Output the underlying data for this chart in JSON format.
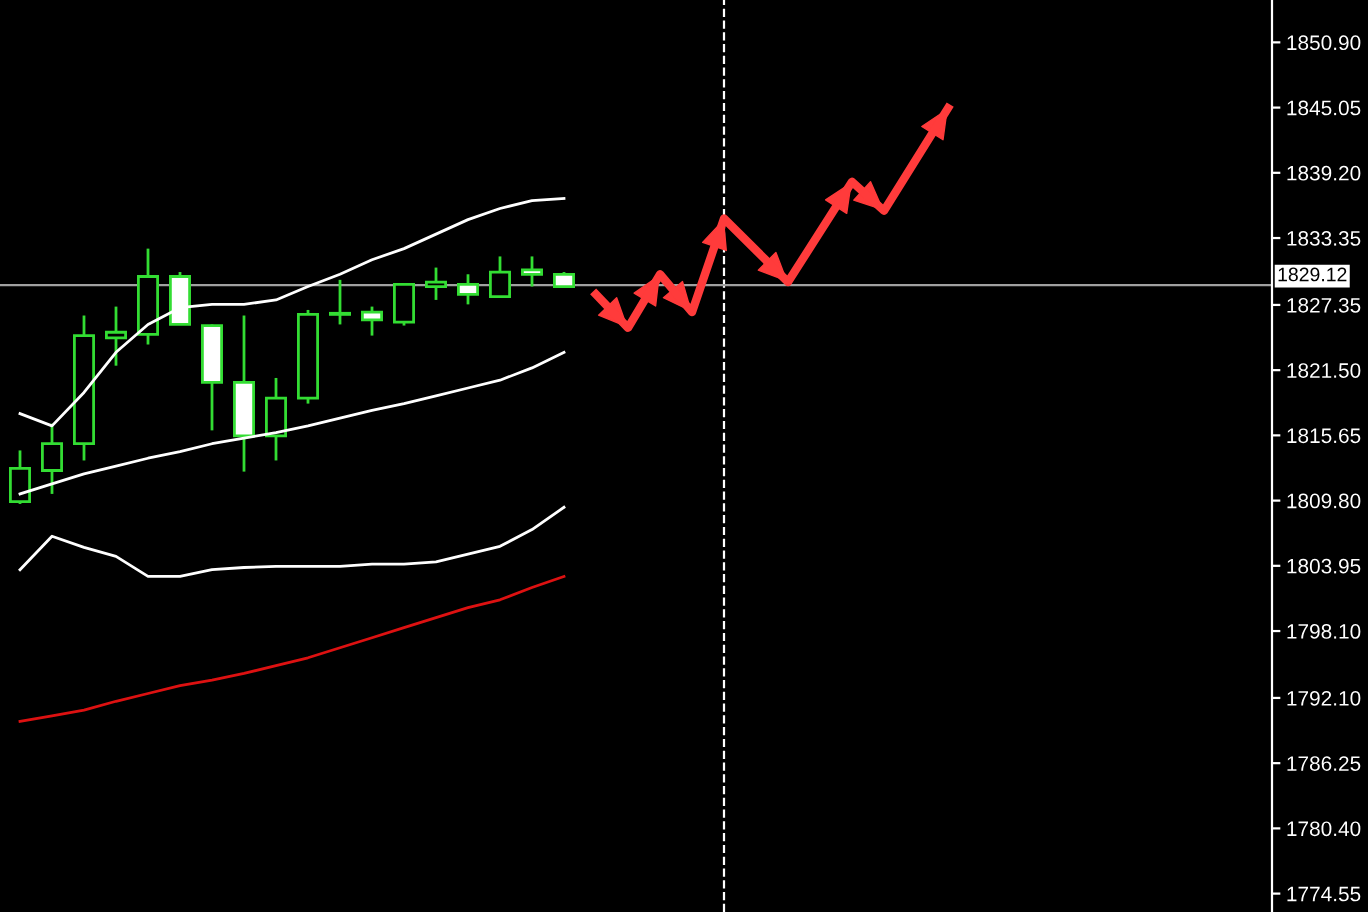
{
  "chart_data": {
    "type": "candlestick",
    "categories": [
      null,
      null,
      null,
      null,
      null,
      null,
      null,
      null,
      null,
      null,
      null,
      null,
      null,
      null,
      null,
      null,
      null,
      null,
      null,
      null,
      null,
      null,
      null,
      null,
      null,
      null,
      null,
      null,
      null,
      null,
      null,
      null,
      null,
      null,
      null,
      null,
      null,
      null,
      null,
      null
    ],
    "ylim": [
      1772.9,
      1854.7
    ],
    "yticks": [
      1774.55,
      {
        "value": 1780.4,
        "label": "1780.40"
      },
      1786.25,
      {
        "value": 1792.1,
        "label": "1792.10"
      },
      {
        "value": 1798.1,
        "label": "1798.10"
      },
      1803.95,
      {
        "value": 1809.8,
        "label": "1809.80"
      },
      1815.65,
      {
        "value": 1821.5,
        "label": "1821.50"
      },
      1827.35,
      1833.35,
      {
        "value": 1839.2,
        "label": "1839.20"
      },
      1845.05,
      {
        "value": 1850.9,
        "label": "1850.90"
      }
    ],
    "grid": false,
    "color": "#33dd33",
    "colors": [
      "#000000",
      "#000000",
      "#000000",
      "#000000",
      "#000000",
      "#ffffff",
      "#ffffff",
      "#ffffff",
      "#000000",
      "#000000",
      "#000000",
      "#ffffff",
      "#000000",
      "#000000",
      "#ffffff",
      "#000000",
      "#ffffff",
      "#ffffff",
      null,
      null,
      null,
      null,
      null,
      null,
      null,
      null,
      null,
      null,
      null,
      null,
      null,
      null,
      null,
      null,
      null,
      null,
      null,
      null,
      null,
      null
    ],
    "ohlc": [
      [
        1809.7,
        1814.3,
        1809.5,
        1812.7
      ],
      [
        1812.5,
        1816.7,
        1810.4,
        1814.9
      ],
      [
        1814.9,
        1826.4,
        1813.4,
        1824.6
      ],
      [
        1824.4,
        1827.2,
        1821.9,
        1824.9
      ],
      [
        1824.7,
        1832.4,
        1823.8,
        1829.9
      ],
      [
        1829.9,
        1830.3,
        1825.6,
        1825.6
      ],
      [
        1825.5,
        1825.6,
        1816.1,
        1820.4
      ],
      [
        1820.4,
        1826.4,
        1812.4,
        1815.6
      ],
      [
        1815.6,
        1820.8,
        1813.4,
        1819.0
      ],
      [
        1819.0,
        1826.9,
        1818.5,
        1826.5
      ],
      [
        1826.5,
        1829.6,
        1825.6,
        1826.6
      ],
      [
        1826.7,
        1827.2,
        1824.6,
        1826.0
      ],
      [
        1825.8,
        1829.2,
        1825.5,
        1829.2
      ],
      [
        1829.0,
        1830.7,
        1827.8,
        1829.4
      ],
      [
        1829.2,
        1830.1,
        1827.4,
        1828.3
      ],
      [
        1828.1,
        1831.7,
        1828.0,
        1830.3
      ],
      [
        1830.5,
        1831.7,
        1829.0,
        1830.1
      ],
      [
        1830.1,
        1830.3,
        1828.9,
        1829.0
      ],
      null,
      null,
      null,
      null,
      null,
      null,
      null,
      null,
      null,
      null,
      null,
      null,
      null,
      null,
      null,
      null,
      null,
      null,
      null,
      null,
      null,
      null
    ],
    "series": [
      {
        "type": "line",
        "color": "#ffffff",
        "values": [
          1817.6,
          1816.5,
          1819.5,
          1823.1,
          1825.6,
          1827.1,
          1827.4,
          1827.4,
          1827.8,
          1829.0,
          1830.1,
          1831.4,
          1832.4,
          1833.7,
          1835.0,
          1836.0,
          1836.7,
          1836.9,
          null,
          null,
          null,
          null,
          null,
          null,
          null,
          null,
          null,
          null,
          null,
          null,
          null,
          null,
          null,
          null,
          null,
          null,
          null,
          null,
          null,
          null
        ]
      },
      {
        "type": "line",
        "color": "#ffffff",
        "values": [
          1810.4,
          1811.3,
          1812.2,
          1812.9,
          1813.6,
          1814.2,
          1814.9,
          1815.4,
          1815.9,
          1816.5,
          1817.2,
          1817.9,
          1818.5,
          1819.2,
          1819.9,
          1820.6,
          1821.7,
          1823.1,
          null,
          null,
          null,
          null,
          null,
          null,
          null,
          null,
          null,
          null,
          null,
          null,
          null,
          null,
          null,
          null,
          null,
          null,
          null,
          null,
          null,
          null
        ]
      },
      {
        "type": "line",
        "color": "#ffffff",
        "values": [
          1803.6,
          1806.6,
          1805.6,
          1804.8,
          1803.0,
          1803.0,
          1803.6,
          1803.8,
          1803.9,
          1803.9,
          1803.9,
          1804.1,
          1804.1,
          1804.3,
          1805.0,
          1805.7,
          1807.2,
          1809.2,
          null,
          null,
          null,
          null,
          null,
          null,
          null,
          null,
          null,
          null,
          null,
          null,
          null,
          null,
          null,
          null,
          null,
          null,
          null,
          null,
          null,
          null
        ]
      },
      {
        "type": "line",
        "color": "#dd1111",
        "values": [
          1790.0,
          1790.5,
          1791.0,
          1791.8,
          1792.5,
          1793.2,
          1793.7,
          1794.3,
          1795.0,
          1795.7,
          1796.6,
          1797.5,
          1798.4,
          1799.3,
          1800.2,
          1800.9,
          1802.0,
          1803.0,
          null,
          null,
          null,
          null,
          null,
          null,
          null,
          null,
          null,
          null,
          null,
          null,
          null,
          null,
          null,
          null,
          null,
          null,
          null,
          null,
          null,
          null
        ]
      },
      {
        "type": "line",
        "color": "#ff3b3b",
        "values": [
          null,
          null,
          null,
          null,
          null,
          null,
          null,
          null,
          null,
          null,
          null,
          null,
          null,
          null,
          null,
          null,
          null,
          null,
          1828.3,
          1825.3,
          1830.1,
          1826.7,
          1835.1,
          null,
          1829.4,
          null,
          1838.4,
          1835.8,
          null,
          1845.0,
          null,
          null,
          null,
          null,
          null,
          null,
          null,
          null,
          null,
          null
        ]
      }
    ],
    "ref_lines": [
      {
        "axis": "y",
        "value": 1829.12,
        "label": "1829.12",
        "color": "#a0a0a0",
        "line_style": "solid"
      }
    ]
  }
}
